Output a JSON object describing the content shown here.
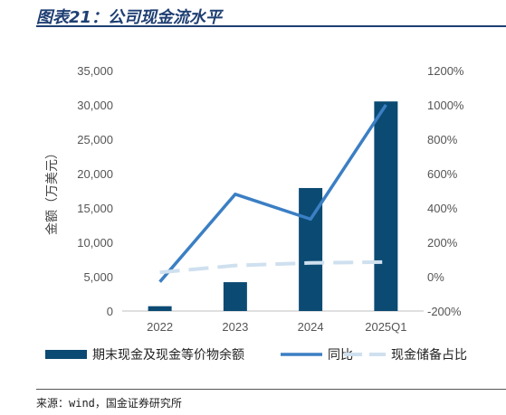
{
  "header": {
    "title": "图表21：公司现金流水平"
  },
  "footer": {
    "source": "来源：wind，国金证券研究所"
  },
  "colors": {
    "bar": "#0b4a73",
    "yoy_line": "#3b7fc4",
    "ratio_line": "#cfe0ef",
    "title": "#1f3f73"
  },
  "chart_data": {
    "type": "bar",
    "categories": [
      "2022",
      "2023",
      "2024",
      "2025Q1"
    ],
    "ylabel": "金额（万美元）",
    "ylim": [
      0,
      35000
    ],
    "y_ticks": [
      "0",
      "5,000",
      "10,000",
      "15,000",
      "20,000",
      "25,000",
      "30,000",
      "35,000"
    ],
    "y2lim": [
      -200,
      1200
    ],
    "y2_ticks": [
      "-200%",
      "0%",
      "200%",
      "400%",
      "600%",
      "800%",
      "1000%",
      "1200%"
    ],
    "grid": false,
    "legend_position": "bottom",
    "series": [
      {
        "name": "期末现金及现金等价物余额",
        "kind": "bar",
        "axis": "left",
        "values": [
          700,
          4200,
          17900,
          30500
        ]
      },
      {
        "name": "同比",
        "kind": "line",
        "axis": "right",
        "values": [
          -30,
          480,
          335,
          1000
        ]
      },
      {
        "name": "现金储备占比",
        "kind": "line",
        "axis": "right",
        "style": "dashed",
        "values": [
          25,
          65,
          80,
          85
        ]
      }
    ]
  }
}
